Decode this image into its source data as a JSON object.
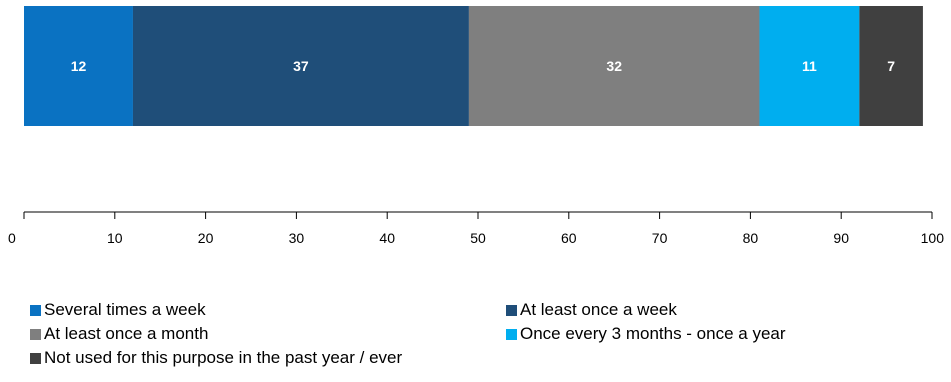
{
  "chart_data": {
    "type": "bar",
    "orientation": "horizontal-stacked-100",
    "xlim": [
      0,
      100
    ],
    "x_ticks": [
      "0",
      "10",
      "20",
      "30",
      "40",
      "50",
      "60",
      "70",
      "80",
      "90",
      "100"
    ],
    "grid": false,
    "legend_position": "bottom",
    "series": [
      {
        "name": "Several times a week",
        "value": 12,
        "color": "#0A72C2"
      },
      {
        "name": "At least once a week",
        "value": 37,
        "color": "#1F4E79"
      },
      {
        "name": "At least once a month",
        "value": 32,
        "color": "#7F7F7F"
      },
      {
        "name": "Once every 3 months - once a year",
        "value": 11,
        "color": "#00AEEF"
      },
      {
        "name": "Not used for this purpose in the past year / ever",
        "value": 7,
        "color": "#404040"
      }
    ]
  }
}
